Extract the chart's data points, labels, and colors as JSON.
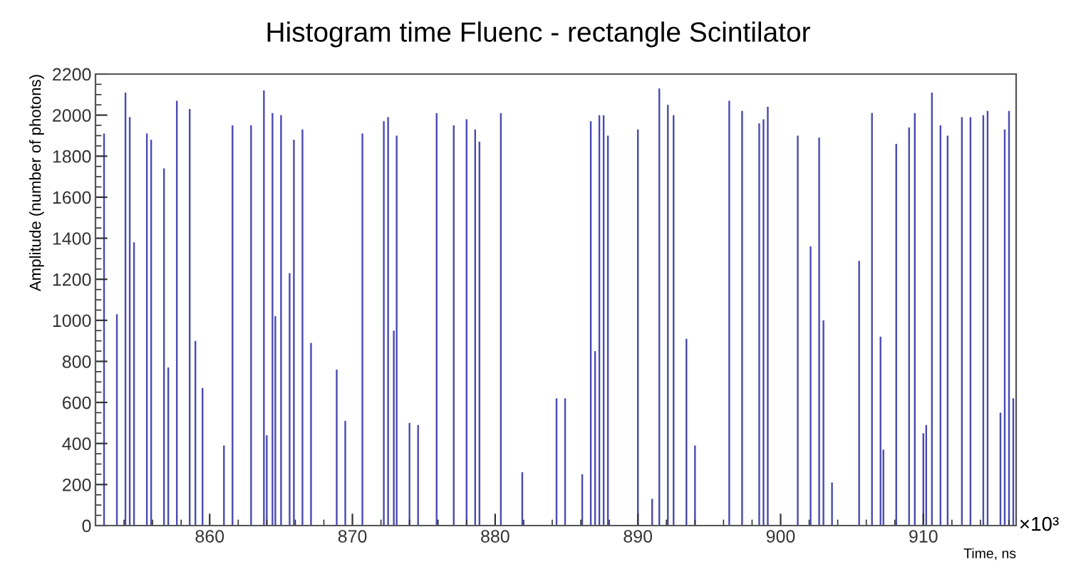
{
  "chart_data": {
    "type": "bar",
    "title": "Histogram time Fluenc - rectangle Scintilator",
    "xlabel": "Time, ns",
    "ylabel": "Amplitude (number of photons)",
    "annotations": [
      "×10³"
    ],
    "xlim": [
      852,
      916.5
    ],
    "xticks": [
      860,
      870,
      880,
      890,
      900,
      910
    ],
    "ylim": [
      0,
      2200
    ],
    "yticks": [
      0,
      200,
      400,
      600,
      800,
      1000,
      1200,
      1400,
      1600,
      1800,
      2000,
      2200
    ],
    "grid": false,
    "legend": false,
    "series": [
      {
        "color": "#4a4ab4",
        "x": [
          852.6,
          853.5,
          854.1,
          854.4,
          854.7,
          855.6,
          855.9,
          856.8,
          857.1,
          857.7,
          858.6,
          859.0,
          859.5,
          861.0,
          861.6,
          862.9,
          863.8,
          864.0,
          864.4,
          864.6,
          865.0,
          865.6,
          865.9,
          866.5,
          867.1,
          868.9,
          869.5,
          870.7,
          872.2,
          872.5,
          872.9,
          873.1,
          874.0,
          874.6,
          875.9,
          877.1,
          878.0,
          878.6,
          878.9,
          880.4,
          881.9,
          884.3,
          884.9,
          886.1,
          886.7,
          887.0,
          887.3,
          887.6,
          887.9,
          890.0,
          891.0,
          891.5,
          892.1,
          892.5,
          893.4,
          894.0,
          896.4,
          897.3,
          898.5,
          898.8,
          899.1,
          901.2,
          902.1,
          902.7,
          903.0,
          903.6,
          905.5,
          906.4,
          907.0,
          907.2,
          908.1,
          909.0,
          909.4,
          910.0,
          910.2,
          910.6,
          911.2,
          911.7,
          912.7,
          913.3,
          914.2,
          914.5,
          915.4,
          915.7,
          916.0,
          916.3
        ],
        "values": [
          1910,
          1030,
          2110,
          1990,
          1380,
          1910,
          1880,
          1740,
          770,
          2070,
          2030,
          900,
          670,
          390,
          1950,
          1950,
          2120,
          440,
          2010,
          1020,
          2000,
          1230,
          1880,
          1930,
          890,
          760,
          510,
          1910,
          1970,
          1990,
          950,
          1900,
          500,
          490,
          2010,
          1950,
          1980,
          1930,
          1870,
          2010,
          260,
          620,
          620,
          250,
          1970,
          850,
          2000,
          2000,
          1900,
          1930,
          130,
          2130,
          2050,
          2000,
          910,
          390,
          2070,
          2020,
          1960,
          1980,
          2040,
          1900,
          1360,
          1890,
          1000,
          210,
          1290,
          2010,
          920,
          370,
          1860,
          1940,
          2010,
          450,
          490,
          2110,
          1950,
          1900,
          1990,
          1990,
          2000,
          2020,
          550,
          1930,
          2020,
          620
        ]
      }
    ]
  }
}
